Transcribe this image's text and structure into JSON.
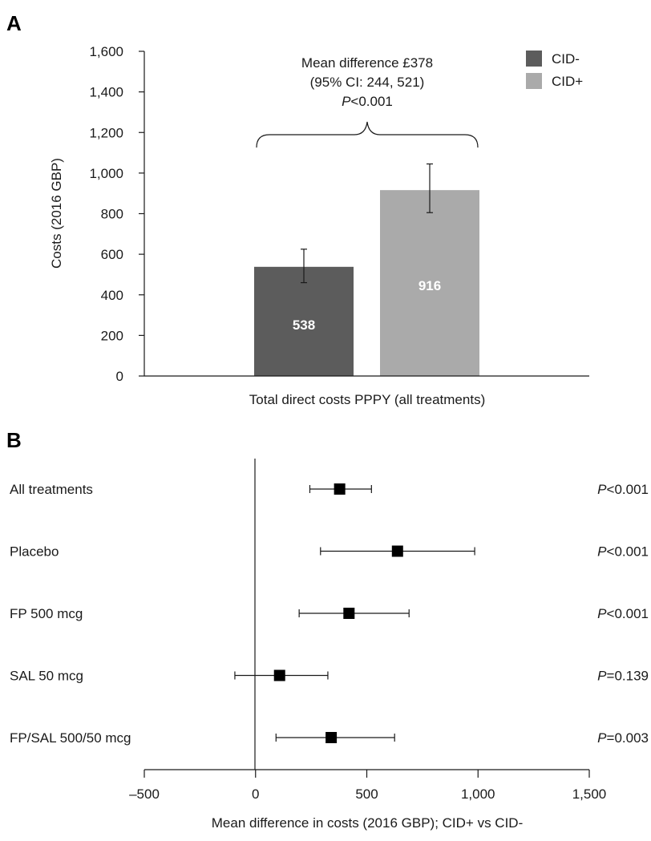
{
  "panel_a_letter": "A",
  "panel_b_letter": "B",
  "chart_data": [
    {
      "type": "bar",
      "panel": "A",
      "ylabel": "Costs (2016 GBP)",
      "xlabel": "Total direct costs PPPY (all treatments)",
      "ylim": [
        0,
        1600
      ],
      "yticks": [
        0,
        200,
        400,
        600,
        800,
        1000,
        1200,
        1400,
        1600
      ],
      "ytick_labels": [
        "0",
        "200",
        "400",
        "600",
        "800",
        "1,000",
        "1,200",
        "1,400",
        "1,600"
      ],
      "legend_position": "top-right",
      "series": [
        {
          "name": "CID-",
          "value": 538,
          "label": "538",
          "ci": [
            460,
            625
          ],
          "color": "#5c5c5c"
        },
        {
          "name": "CID+",
          "value": 916,
          "label": "916",
          "ci": [
            805,
            1045
          ],
          "color": "#aaaaaa"
        }
      ],
      "annotation": {
        "line1": "Mean difference £378",
        "line2": "(95% CI: 244, 521)",
        "line3_italic": "P",
        "line3_rest": "<0.001"
      }
    },
    {
      "type": "forest",
      "panel": "B",
      "xlabel": "Mean difference in costs (2016 GBP); CID+ vs CID-",
      "xlim": [
        -500,
        1500
      ],
      "xticks": [
        -500,
        0,
        500,
        1000,
        1500
      ],
      "xtick_labels": [
        "–500",
        "0",
        "500",
        "1,000",
        "1,500"
      ],
      "rows": [
        {
          "label": "All treatments",
          "estimate": 378,
          "ci": [
            244,
            521
          ],
          "p_italic": "P",
          "p_rest": "<0.001"
        },
        {
          "label": "Placebo",
          "estimate": 638,
          "ci": [
            292,
            985
          ],
          "p_italic": "P",
          "p_rest": "<0.001"
        },
        {
          "label": "FP 500 mcg",
          "estimate": 420,
          "ci": [
            196,
            690
          ],
          "p_italic": "P",
          "p_rest": "<0.001"
        },
        {
          "label": "SAL 50 mcg",
          "estimate": 108,
          "ci": [
            -93,
            325
          ],
          "p_italic": "P",
          "p_rest": "=0.139"
        },
        {
          "label": "FP/SAL 500/50 mcg",
          "estimate": 340,
          "ci": [
            92,
            625
          ],
          "p_italic": "P",
          "p_rest": "=0.003"
        }
      ]
    }
  ]
}
